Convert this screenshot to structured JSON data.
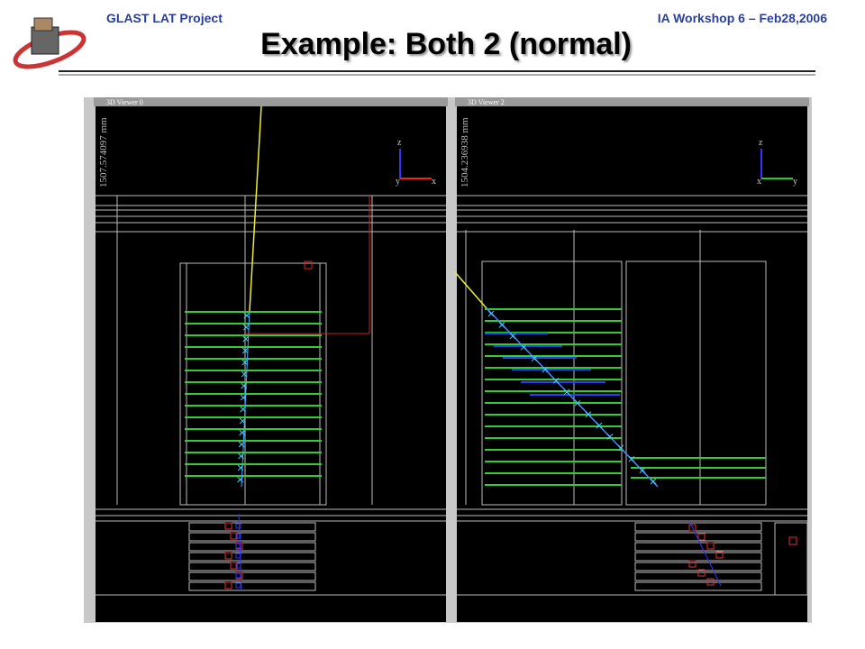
{
  "header": {
    "left": "GLAST LAT Project",
    "right": "IA Workshop 6 – Feb28,2006",
    "title": "Example: Both 2 (normal)"
  },
  "viewers": [
    {
      "title": "3D Viewer 0",
      "scale": "1507.574097 mm",
      "axes": [
        "z",
        "y",
        "x"
      ]
    },
    {
      "title": "3D Viewer 2",
      "scale": "1504.236938 mm",
      "axes": [
        "z",
        "x",
        "y"
      ]
    }
  ]
}
